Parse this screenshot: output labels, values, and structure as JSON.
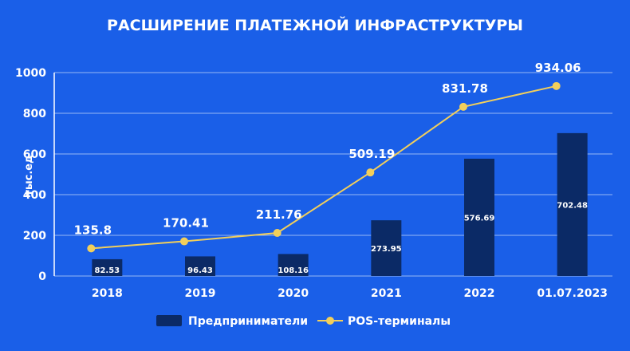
{
  "chart_data": {
    "type": "bar",
    "title": "РАСШИРЕНИЕ ПЛАТЕЖНОЙ ИНФРАСТРУКТУРЫ",
    "ylabel": "тыс.ед",
    "xlabel": "",
    "ylim": [
      0,
      1000
    ],
    "yticks": [
      0,
      200,
      400,
      600,
      800,
      1000
    ],
    "categories": [
      "2018",
      "2019",
      "2020",
      "2021",
      "2022",
      "01.07.2023"
    ],
    "series": [
      {
        "name": "Предприниматели",
        "type": "bar",
        "color": "#0b2a66",
        "values": [
          82.53,
          96.43,
          108.16,
          273.95,
          576.69,
          702.48
        ],
        "labels": [
          "82.53",
          "96.43",
          "108.16",
          "273.95",
          "576.69",
          "702.48"
        ]
      },
      {
        "name": "POS-терминалы",
        "type": "line",
        "color": "#f2cf5b",
        "values": [
          135.8,
          170.41,
          211.76,
          509.19,
          831.78,
          934.06
        ],
        "labels": [
          "135.8",
          "170.41",
          "211.76",
          "509.19",
          "831.78",
          "934.06"
        ]
      }
    ],
    "grid": true,
    "legend": "bottom-center"
  }
}
